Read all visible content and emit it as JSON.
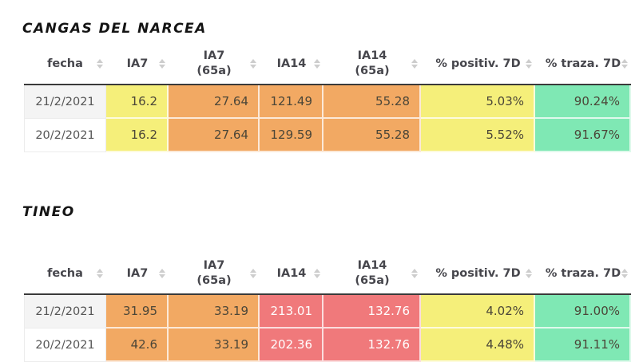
{
  "columns": [
    {
      "label": "fecha"
    },
    {
      "label": "IA7"
    },
    {
      "label": "IA7\n(65a)"
    },
    {
      "label": "IA14"
    },
    {
      "label": "IA14\n(65a)"
    },
    {
      "label": "% positiv. 7D"
    },
    {
      "label": "% traza. 7D"
    }
  ],
  "tables": [
    {
      "title": "CANGAS DEL NARCEA",
      "rows": [
        [
          "21/2/2021",
          "16.2",
          "27.64",
          "121.49",
          "55.28",
          "5.03%",
          "90.24%"
        ],
        [
          "20/2/2021",
          "16.2",
          "27.64",
          "129.59",
          "55.28",
          "5.52%",
          "91.67%"
        ]
      ],
      "cell_colors": [
        "none",
        "yellow",
        "orange",
        "orange",
        "orange",
        "yellow",
        "green"
      ]
    },
    {
      "title": "TINEO",
      "rows": [
        [
          "21/2/2021",
          "31.95",
          "33.19",
          "213.01",
          "132.76",
          "4.02%",
          "91.00%"
        ],
        [
          "20/2/2021",
          "42.6",
          "33.19",
          "202.36",
          "132.76",
          "4.48%",
          "91.11%"
        ]
      ],
      "cell_colors": [
        "none",
        "orange",
        "orange",
        "red",
        "red",
        "yellow",
        "green"
      ]
    }
  ],
  "colors": {
    "yellow": "#f5ef7a",
    "orange": "#f2a963",
    "red": "#f0797b",
    "green": "#7fe8b4",
    "tbody_top_border": "#3a3a3a",
    "header_text": "#47474d",
    "alt_date_row_bg": "#f4f4f4"
  }
}
